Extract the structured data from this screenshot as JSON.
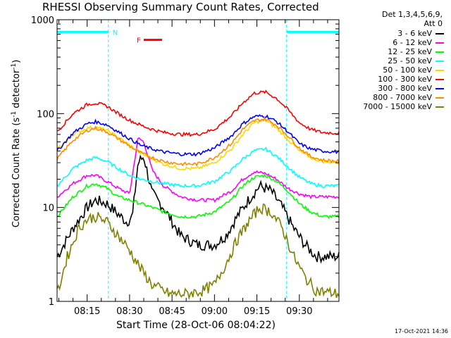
{
  "chart_data": {
    "type": "line",
    "title": "RHESSI Observing Summary Count Rates, Corrected",
    "xlabel": "Start Time (28-Oct-06 08:04:22)",
    "ylabel_pre": "Corrected Count Rate (s",
    "ylabel_sup1": "-1",
    "ylabel_mid": " detector",
    "ylabel_sup2": "-1",
    "ylabel_post": ")",
    "yscale": "log",
    "ylim": [
      1,
      1000
    ],
    "y_ticks": [
      "1",
      "10",
      "100",
      "1000"
    ],
    "x_ticks": [
      "08:15",
      "08:30",
      "08:45",
      "09:00",
      "09:15",
      "09:30"
    ],
    "x_tick_minutes": [
      15,
      30,
      45,
      60,
      75,
      90
    ],
    "xlim_minutes": [
      4.37,
      104
    ],
    "legend_header": [
      "Det 1,3,4,5,6,9,",
      "Att 0"
    ],
    "series": [
      {
        "name": "3 - 6 keV",
        "color": "#000000",
        "x": [
          4.4,
          10,
          15,
          18,
          22,
          25,
          29,
          31,
          33,
          35,
          38,
          42,
          48,
          54,
          60,
          64,
          68,
          72,
          76,
          80,
          84,
          88,
          92,
          96,
          100,
          104
        ],
        "y": [
          3,
          6,
          10,
          12,
          11,
          9,
          7,
          8,
          30,
          35,
          14,
          10,
          5,
          4,
          4,
          5,
          8,
          12,
          17,
          15,
          10,
          6,
          4,
          3,
          3,
          3
        ]
      },
      {
        "name": "6 - 12 keV",
        "color": "#ff00ff",
        "x": [
          4.4,
          10,
          15,
          18,
          22,
          26,
          30,
          33,
          35,
          38,
          42,
          48,
          54,
          60,
          66,
          70,
          74,
          78,
          82,
          86,
          90,
          94,
          98,
          104
        ],
        "y": [
          13,
          18,
          22,
          22,
          19,
          16,
          14,
          55,
          50,
          25,
          17,
          13,
          12,
          12,
          15,
          20,
          24,
          23,
          20,
          16,
          14,
          13,
          13,
          13
        ]
      },
      {
        "name": "12 - 25 keV",
        "color": "#00ff00",
        "x": [
          4.4,
          10,
          15,
          18,
          22,
          26,
          30,
          34,
          38,
          42,
          48,
          54,
          60,
          66,
          70,
          74,
          78,
          82,
          86,
          90,
          94,
          98,
          104
        ],
        "y": [
          8,
          13,
          17,
          18,
          16,
          13,
          12,
          11,
          10,
          9,
          8,
          8,
          9,
          12,
          17,
          21,
          22,
          19,
          15,
          11,
          9,
          8,
          8
        ]
      },
      {
        "name": "25 - 50 keV",
        "color": "#00ffff",
        "x": [
          4.4,
          10,
          15,
          18,
          22,
          26,
          30,
          34,
          38,
          42,
          48,
          54,
          60,
          66,
          70,
          74,
          78,
          82,
          86,
          90,
          94,
          98,
          104
        ],
        "y": [
          17,
          26,
          32,
          34,
          31,
          26,
          22,
          20,
          19,
          18,
          17,
          17,
          19,
          25,
          33,
          40,
          42,
          35,
          27,
          21,
          18,
          17,
          17
        ]
      },
      {
        "name": "50 - 100 keV",
        "color": "#ffd700",
        "x": [
          4.4,
          10,
          15,
          18,
          22,
          26,
          30,
          34,
          38,
          42,
          48,
          54,
          60,
          66,
          70,
          74,
          78,
          82,
          86,
          90,
          94,
          98,
          104
        ],
        "y": [
          42,
          60,
          70,
          72,
          66,
          56,
          46,
          38,
          33,
          29,
          26,
          26,
          30,
          42,
          60,
          80,
          85,
          70,
          53,
          40,
          34,
          31,
          30
        ]
      },
      {
        "name": "100 - 300 keV",
        "color": "#ff0000",
        "x": [
          4.4,
          10,
          15,
          18,
          22,
          26,
          30,
          34,
          38,
          42,
          48,
          54,
          60,
          66,
          70,
          74,
          78,
          82,
          86,
          90,
          94,
          98,
          104
        ],
        "y": [
          64,
          100,
          125,
          130,
          120,
          100,
          85,
          75,
          68,
          63,
          60,
          60,
          68,
          95,
          130,
          165,
          170,
          145,
          110,
          80,
          68,
          63,
          62
        ]
      },
      {
        "name": "300 - 800 keV",
        "color": "#0000ff",
        "x": [
          4.4,
          10,
          15,
          18,
          22,
          26,
          30,
          34,
          38,
          42,
          48,
          54,
          60,
          66,
          70,
          74,
          78,
          82,
          86,
          90,
          94,
          98,
          104
        ],
        "y": [
          40,
          62,
          78,
          82,
          76,
          64,
          54,
          46,
          42,
          39,
          37,
          37,
          43,
          58,
          78,
          93,
          95,
          82,
          64,
          48,
          42,
          40,
          39
        ]
      },
      {
        "name": "800 - 7000 keV",
        "color": "#ff8c00",
        "x": [
          4.4,
          10,
          15,
          18,
          22,
          26,
          30,
          34,
          38,
          42,
          48,
          54,
          60,
          66,
          70,
          74,
          78,
          82,
          86,
          90,
          94,
          98,
          104
        ],
        "y": [
          33,
          52,
          66,
          70,
          64,
          54,
          45,
          38,
          34,
          31,
          29,
          29,
          34,
          48,
          68,
          84,
          88,
          75,
          58,
          43,
          35,
          32,
          31
        ]
      },
      {
        "name": "7000 - 15000 keV",
        "color": "#808000",
        "x": [
          4.4,
          8,
          12,
          15,
          18,
          22,
          26,
          30,
          34,
          38,
          44,
          50,
          56,
          60,
          64,
          68,
          72,
          76,
          80,
          84,
          88,
          92,
          96,
          104
        ],
        "y": [
          1.2,
          3,
          6,
          7.5,
          8,
          7,
          5,
          3.5,
          2.2,
          1.5,
          1.2,
          1.2,
          1.3,
          1.5,
          2.5,
          4.5,
          7,
          10,
          9,
          6,
          3,
          1.8,
          1.3,
          1.2
        ]
      }
    ],
    "annotations": [
      {
        "label": "N",
        "color": "#00ffff",
        "x_start": 4.37,
        "x_end": 22.5,
        "y": 740
      },
      {
        "label": "",
        "color": "#00ffff",
        "x_start": 85.5,
        "x_end": 104,
        "y": 740
      },
      {
        "label": "F",
        "color": "#ff0000",
        "x_start": 35,
        "x_end": 41.5,
        "y": 610
      }
    ],
    "vertical_markers_minutes": [
      4.37,
      22.5,
      85.5,
      104
    ],
    "grid": false
  },
  "timestamp": "17-Oct-2021 14:36"
}
